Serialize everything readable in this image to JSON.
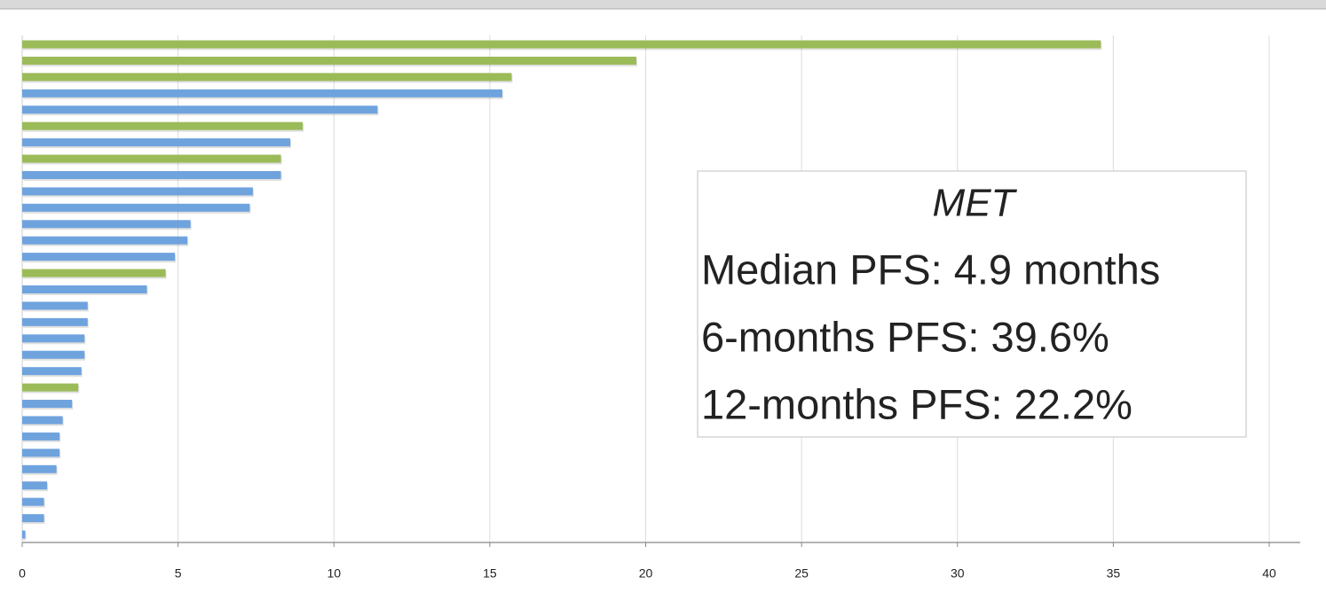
{
  "chart_data": {
    "type": "bar",
    "orientation": "horizontal",
    "values": [
      34.6,
      19.7,
      15.7,
      15.4,
      11.4,
      9.0,
      8.6,
      8.3,
      8.3,
      7.4,
      7.3,
      5.4,
      5.3,
      4.9,
      4.6,
      4.0,
      2.1,
      2.1,
      2.0,
      2.0,
      1.9,
      1.8,
      1.6,
      1.3,
      1.2,
      1.2,
      1.1,
      0.8,
      0.7,
      0.7,
      0.1
    ],
    "colors": [
      "#9bbb59",
      "#9bbb59",
      "#9bbb59",
      "#6fa3de",
      "#6fa3de",
      "#9bbb59",
      "#6fa3de",
      "#9bbb59",
      "#6fa3de",
      "#6fa3de",
      "#6fa3de",
      "#6fa3de",
      "#6fa3de",
      "#6fa3de",
      "#9bbb59",
      "#6fa3de",
      "#6fa3de",
      "#6fa3de",
      "#6fa3de",
      "#6fa3de",
      "#6fa3de",
      "#9bbb59",
      "#6fa3de",
      "#6fa3de",
      "#6fa3de",
      "#6fa3de",
      "#6fa3de",
      "#6fa3de",
      "#6fa3de",
      "#6fa3de",
      "#6fa3de"
    ],
    "xlim": [
      0,
      40
    ],
    "xticks": [
      0,
      5,
      10,
      15,
      20,
      25,
      30,
      35,
      40
    ],
    "grid": true,
    "annotation": {
      "title": "MET",
      "lines": [
        "Median PFS: 4.9 months",
        "6-months PFS: 39.6%",
        "12-months PFS: 22.2%"
      ]
    }
  }
}
